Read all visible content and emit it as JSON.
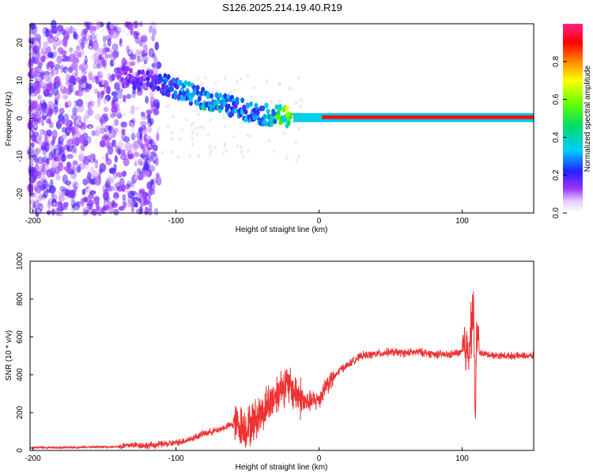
{
  "figure": {
    "title": "S126.2025.214.19.40.R19"
  },
  "chart_data": [
    {
      "type": "heatmap",
      "xlabel": "Height of straight line (km)",
      "ylabel": "Frequency (Hz)",
      "xlim": [
        -202,
        150
      ],
      "ylim": [
        -25,
        25
      ],
      "x_ticks": [
        -200,
        -100,
        0,
        100
      ],
      "y_ticks": [
        -20,
        -10,
        0,
        10,
        20
      ],
      "colorbar": {
        "label": "Normalized spectral amplitude",
        "range": [
          0,
          1
        ],
        "ticks": [
          0.0,
          0.2,
          0.4,
          0.6,
          0.8
        ],
        "colormap": "rainbow (white → violet → blue → cyan → green → yellow → red → magenta)"
      },
      "ridge": [
        {
          "x": -140,
          "freq": 11,
          "amp": 0.15
        },
        {
          "x": -120,
          "freq": 10,
          "amp": 0.2
        },
        {
          "x": -100,
          "freq": 8,
          "amp": 0.3
        },
        {
          "x": -80,
          "freq": 5,
          "amp": 0.4
        },
        {
          "x": -60,
          "freq": 3,
          "amp": 0.35
        },
        {
          "x": -40,
          "freq": 1,
          "amp": 0.3
        },
        {
          "x": -20,
          "freq": 0.5,
          "amp": 0.7
        },
        {
          "x": 0,
          "freq": 0.3,
          "amp": 0.9
        },
        {
          "x": 50,
          "freq": 0.3,
          "amp": 0.95
        },
        {
          "x": 100,
          "freq": 0.3,
          "amp": 0.85
        },
        {
          "x": 150,
          "freq": 0.3,
          "amp": 0.9
        }
      ],
      "grid": false
    },
    {
      "type": "line",
      "xlabel": "Height of straight line (km)",
      "ylabel": "SNR (10 * v/v)",
      "xlim": [
        -202,
        150
      ],
      "ylim": [
        0,
        1000
      ],
      "x_ticks": [
        -200,
        -100,
        0,
        100
      ],
      "y_ticks": [
        0,
        200,
        400,
        600,
        800,
        1000
      ],
      "color": "#ee3333",
      "series": [
        {
          "x": [
            -202,
            -180,
            -160,
            -140,
            -130,
            -120,
            -100,
            -90,
            -80,
            -70,
            -60,
            -50,
            -40,
            -35,
            -30,
            -25,
            -20,
            -15,
            -10,
            -5,
            0,
            5,
            10,
            15,
            20,
            25,
            30,
            40,
            50,
            60,
            70,
            80,
            90,
            100,
            105,
            107,
            108,
            109,
            110,
            112,
            115,
            120,
            130,
            140,
            150
          ],
          "y": [
            15,
            15,
            18,
            20,
            30,
            25,
            40,
            60,
            90,
            110,
            140,
            120,
            200,
            250,
            300,
            350,
            330,
            300,
            250,
            260,
            270,
            350,
            380,
            430,
            450,
            480,
            500,
            510,
            520,
            515,
            520,
            510,
            505,
            520,
            560,
            700,
            800,
            100,
            600,
            520,
            510,
            505,
            500,
            500,
            500
          ]
        }
      ],
      "grid": false
    }
  ]
}
